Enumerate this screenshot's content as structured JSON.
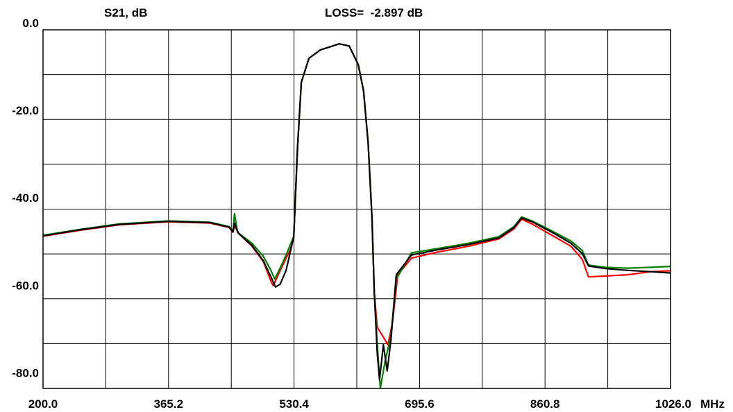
{
  "chart_data": {
    "type": "line",
    "title": "S21, dB",
    "readout": "LOSS=  -2.897 dB",
    "xlabel": "MHz",
    "ylabel": "",
    "xlim": [
      200.0,
      1026.0
    ],
    "ylim": [
      -82.0,
      0.0
    ],
    "x_ticks": [
      200.0,
      365.2,
      530.4,
      695.6,
      860.8,
      1026.0
    ],
    "x_tick_labels": [
      "200.0",
      "365.2",
      "530.4",
      "695.6",
      "860.8",
      "1026.0"
    ],
    "y_ticks": [
      0.0,
      -20.0,
      -40.0,
      -60.0,
      -80.0
    ],
    "y_tick_labels": [
      "0.0",
      "-20.0",
      "-40.0",
      "-60.0",
      "-80.0"
    ],
    "grid": true,
    "series": [
      {
        "color": "#ff0000",
        "points": [
          [
            200,
            -47.2
          ],
          [
            250,
            -45.8
          ],
          [
            300,
            -44.6
          ],
          [
            365,
            -43.9
          ],
          [
            420,
            -44.2
          ],
          [
            445,
            -45.2
          ],
          [
            450,
            -46.3
          ],
          [
            452,
            -44.8
          ],
          [
            458,
            -46.6
          ],
          [
            475,
            -49.5
          ],
          [
            490,
            -53
          ],
          [
            500,
            -57.5
          ],
          [
            503,
            -58.5
          ],
          [
            507,
            -57
          ],
          [
            515,
            -54
          ],
          [
            525,
            -50.5
          ],
          [
            530,
            -47.5
          ],
          [
            535,
            -27
          ],
          [
            540,
            -12
          ],
          [
            550,
            -6.5
          ],
          [
            565,
            -4.6
          ],
          [
            590,
            -3.2
          ],
          [
            603,
            -3.7
          ],
          [
            615,
            -8
          ],
          [
            622,
            -14
          ],
          [
            628,
            -26
          ],
          [
            633,
            -43
          ],
          [
            636,
            -60
          ],
          [
            640,
            -68
          ],
          [
            647,
            -70
          ],
          [
            654,
            -72
          ],
          [
            660,
            -67
          ],
          [
            667,
            -56
          ],
          [
            685,
            -52.2
          ],
          [
            720,
            -50.8
          ],
          [
            760,
            -49.5
          ],
          [
            800,
            -47.8
          ],
          [
            820,
            -45.5
          ],
          [
            830,
            -43.3
          ],
          [
            845,
            -44.5
          ],
          [
            870,
            -47
          ],
          [
            895,
            -49.5
          ],
          [
            910,
            -52.5
          ],
          [
            918,
            -56.5
          ],
          [
            940,
            -56.3
          ],
          [
            970,
            -56
          ],
          [
            1000,
            -55.3
          ],
          [
            1026,
            -55.1
          ]
        ]
      },
      {
        "color": "#008000",
        "points": [
          [
            200,
            -47
          ],
          [
            250,
            -45.6
          ],
          [
            300,
            -44.4
          ],
          [
            365,
            -43.7
          ],
          [
            420,
            -44
          ],
          [
            445,
            -45
          ],
          [
            450,
            -46
          ],
          [
            452,
            -42
          ],
          [
            456,
            -46.3
          ],
          [
            475,
            -48.8
          ],
          [
            490,
            -51.8
          ],
          [
            500,
            -55
          ],
          [
            505,
            -57
          ],
          [
            512,
            -54.5
          ],
          [
            520,
            -51.5
          ],
          [
            530,
            -47.2
          ],
          [
            535,
            -27
          ],
          [
            540,
            -12
          ],
          [
            550,
            -6.5
          ],
          [
            565,
            -4.6
          ],
          [
            590,
            -3.2
          ],
          [
            603,
            -3.7
          ],
          [
            615,
            -8
          ],
          [
            622,
            -14
          ],
          [
            628,
            -26
          ],
          [
            633,
            -43
          ],
          [
            636,
            -60
          ],
          [
            640,
            -72
          ],
          [
            644,
            -82
          ],
          [
            650,
            -76
          ],
          [
            658,
            -70
          ],
          [
            665,
            -57
          ],
          [
            685,
            -51
          ],
          [
            720,
            -50
          ],
          [
            760,
            -48.8
          ],
          [
            800,
            -47.3
          ],
          [
            820,
            -45
          ],
          [
            830,
            -42.8
          ],
          [
            845,
            -43.8
          ],
          [
            870,
            -46
          ],
          [
            895,
            -48.3
          ],
          [
            910,
            -50.5
          ],
          [
            918,
            -53.8
          ],
          [
            940,
            -54.3
          ],
          [
            970,
            -54.5
          ],
          [
            1000,
            -54.3
          ],
          [
            1026,
            -54.1
          ]
        ]
      },
      {
        "color": "#000000",
        "points": [
          [
            200,
            -47.1
          ],
          [
            250,
            -45.7
          ],
          [
            300,
            -44.5
          ],
          [
            365,
            -43.8
          ],
          [
            420,
            -44.1
          ],
          [
            445,
            -45.1
          ],
          [
            450,
            -46.2
          ],
          [
            452,
            -44.2
          ],
          [
            457,
            -46.5
          ],
          [
            475,
            -49.3
          ],
          [
            490,
            -52.8
          ],
          [
            500,
            -56.5
          ],
          [
            506,
            -58.8
          ],
          [
            512,
            -58.2
          ],
          [
            520,
            -55
          ],
          [
            530,
            -47.3
          ],
          [
            535,
            -27
          ],
          [
            540,
            -12
          ],
          [
            550,
            -6.5
          ],
          [
            565,
            -4.6
          ],
          [
            590,
            -3.2
          ],
          [
            603,
            -3.7
          ],
          [
            615,
            -8
          ],
          [
            622,
            -14
          ],
          [
            628,
            -26
          ],
          [
            633,
            -43
          ],
          [
            636,
            -60
          ],
          [
            640,
            -74
          ],
          [
            643,
            -80
          ],
          [
            648,
            -72
          ],
          [
            653,
            -78
          ],
          [
            658,
            -71
          ],
          [
            665,
            -56
          ],
          [
            685,
            -51.5
          ],
          [
            720,
            -50.3
          ],
          [
            760,
            -49.1
          ],
          [
            800,
            -47.6
          ],
          [
            820,
            -45.2
          ],
          [
            830,
            -43
          ],
          [
            845,
            -44
          ],
          [
            870,
            -46.3
          ],
          [
            895,
            -48.8
          ],
          [
            910,
            -51.2
          ],
          [
            918,
            -54
          ],
          [
            940,
            -54.6
          ],
          [
            970,
            -55
          ],
          [
            1000,
            -55.3
          ],
          [
            1026,
            -55.6
          ]
        ]
      }
    ]
  }
}
